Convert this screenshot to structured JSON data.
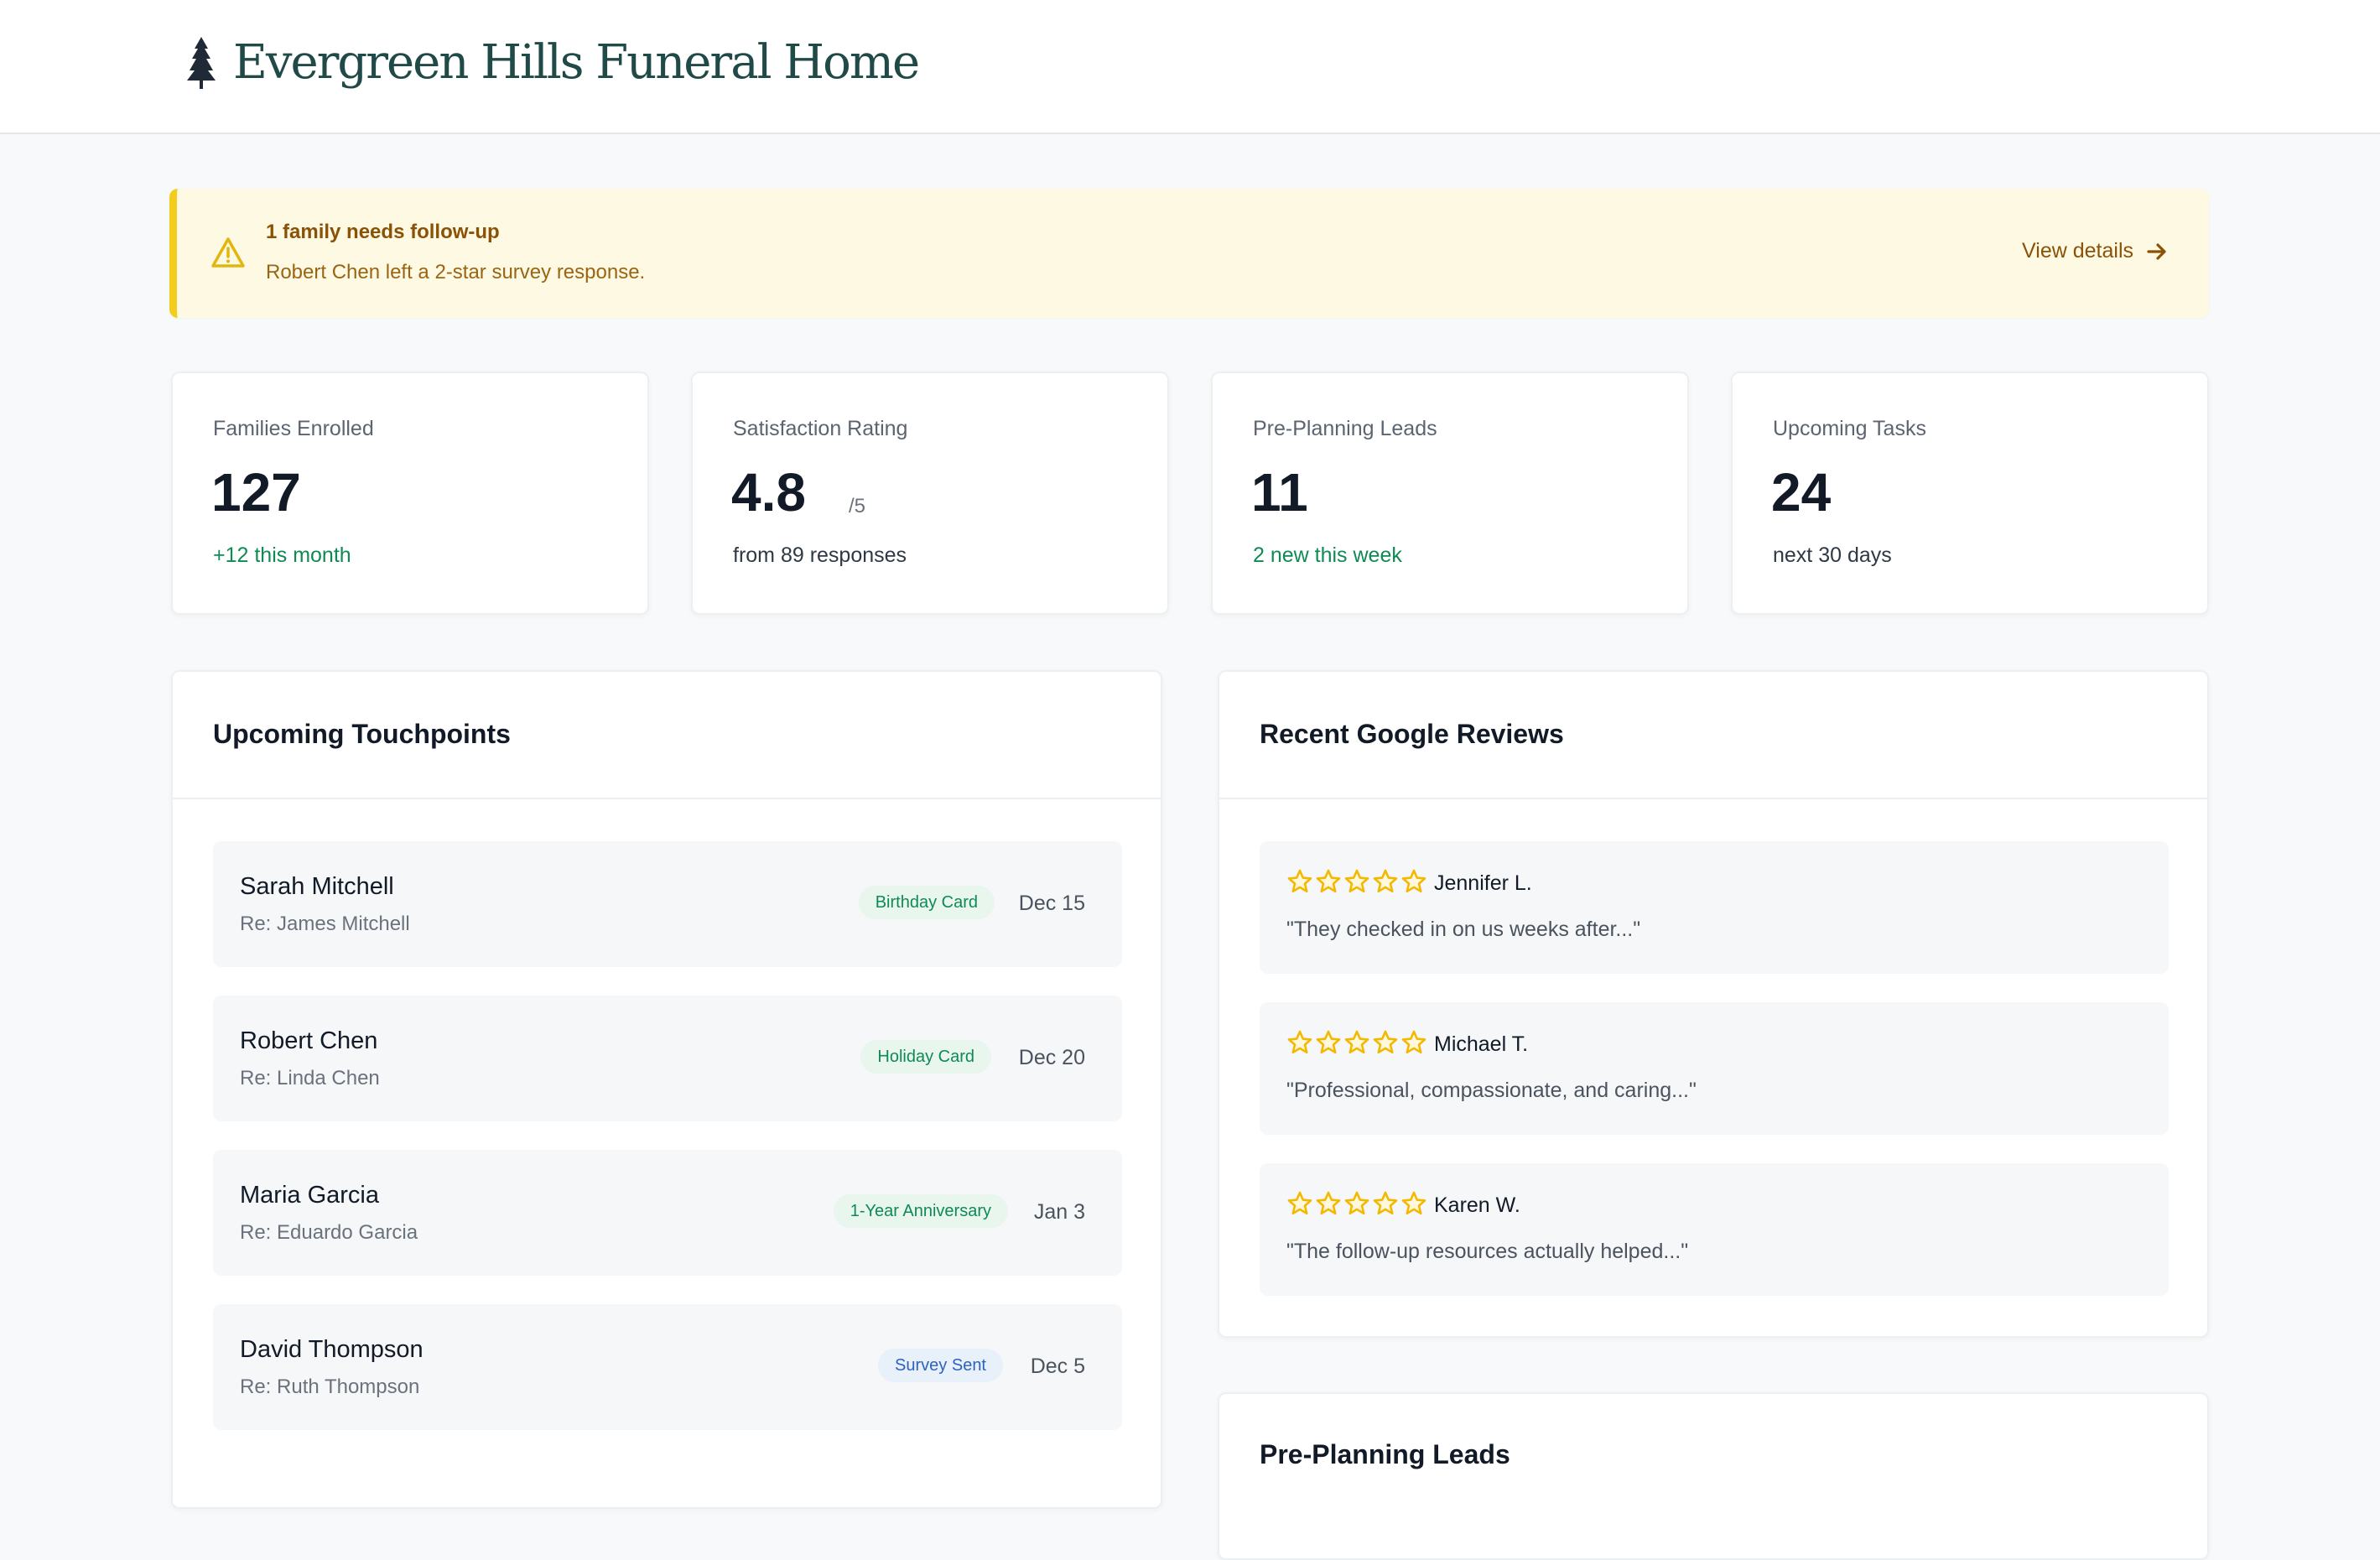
{
  "brand": {
    "name": "Evergreen Hills Funeral Home",
    "icon": "tree-icon"
  },
  "alert": {
    "title": "1 family needs follow-up",
    "text": "Robert Chen left a 2-star survey response.",
    "link_label": "View details",
    "accent": "#f2cd1d"
  },
  "stats": [
    {
      "label": "Families Enrolled",
      "value": "127",
      "suffix": "",
      "note": "+12 this month"
    },
    {
      "label": "Satisfaction Rating",
      "value": "4.8",
      "suffix": "/5",
      "note": "from 89 responses"
    },
    {
      "label": "Pre-Planning Leads",
      "value": "11",
      "suffix": "",
      "note": "2 new this week"
    },
    {
      "label": "Upcoming Tasks",
      "value": "24",
      "suffix": "",
      "note": "next 30 days"
    }
  ],
  "touchpoints": {
    "title": "Upcoming Touchpoints",
    "items": [
      {
        "name": "Sarah Mitchell",
        "re": "Re: James Mitchell",
        "badge": "Birthday Card",
        "date": "Dec 15"
      },
      {
        "name": "Robert Chen",
        "re": "Re: Linda Chen",
        "badge": "Holiday Card",
        "date": "Dec 20"
      },
      {
        "name": "Maria Garcia",
        "re": "Re: Eduardo Garcia",
        "badge": "1-Year Anniversary",
        "date": "Jan 3"
      },
      {
        "name": "David Thompson",
        "re": "Re: Ruth Thompson",
        "badge": "Survey Sent",
        "date": "Dec 5"
      }
    ]
  },
  "reviews": {
    "title": "Recent Google Reviews",
    "items": [
      {
        "author": "Jennifer L.",
        "text": "\"They checked in on us weeks after...\"",
        "stars": 5
      },
      {
        "author": "Michael T.",
        "text": "\"Professional, compassionate, and caring...\"",
        "stars": 5
      },
      {
        "author": "Karen W.",
        "text": "\"The follow-up resources actually helped...\"",
        "stars": 5
      }
    ]
  },
  "leads": {
    "title": "Pre-Planning Leads"
  },
  "colors": {
    "positive": "#0f8a55",
    "info": "#2c62c2",
    "star": "#f5b800",
    "brand": "#1f4a47"
  }
}
